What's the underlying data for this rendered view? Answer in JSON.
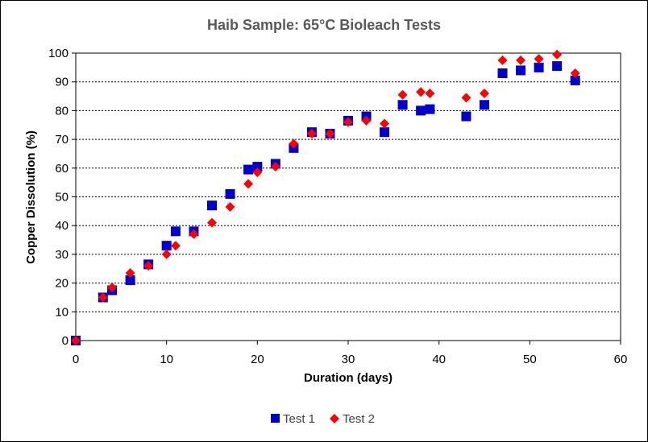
{
  "chart_data": {
    "type": "scatter",
    "title": "Haib Sample: 65°C Bioleach Tests",
    "xlabel": "Duration (days)",
    "ylabel": "Copper Dissolution (%)",
    "xlim": [
      0,
      60
    ],
    "ylim": [
      0,
      100
    ],
    "xticks": [
      0,
      10,
      20,
      30,
      40,
      50,
      60
    ],
    "yticks": [
      0,
      10,
      20,
      30,
      40,
      50,
      60,
      70,
      80,
      90,
      100
    ],
    "grid": "horizontal dotted",
    "legend_position": "bottom",
    "series": [
      {
        "name": "Test 1",
        "marker": "square",
        "color": "#0000CC",
        "points": [
          [
            0,
            0
          ],
          [
            3,
            15
          ],
          [
            4,
            17.5
          ],
          [
            6,
            21
          ],
          [
            8,
            26.5
          ],
          [
            10,
            33
          ],
          [
            11,
            38
          ],
          [
            13,
            38
          ],
          [
            15,
            47
          ],
          [
            17,
            51
          ],
          [
            19,
            59.5
          ],
          [
            20,
            60.5
          ],
          [
            22,
            61.5
          ],
          [
            24,
            67
          ],
          [
            26,
            72.5
          ],
          [
            28,
            72
          ],
          [
            30,
            76.5
          ],
          [
            32,
            78
          ],
          [
            34,
            72.5
          ],
          [
            36,
            82
          ],
          [
            38,
            80
          ],
          [
            39,
            80.5
          ],
          [
            43,
            78
          ],
          [
            45,
            82
          ],
          [
            47,
            93
          ],
          [
            49,
            94
          ],
          [
            51,
            95
          ],
          [
            53,
            95.5
          ],
          [
            55,
            90.5
          ]
        ]
      },
      {
        "name": "Test 2",
        "marker": "diamond",
        "color": "#FF0000",
        "points": [
          [
            0,
            0
          ],
          [
            3,
            15
          ],
          [
            4,
            18.5
          ],
          [
            6,
            23.5
          ],
          [
            8,
            26
          ],
          [
            10,
            30
          ],
          [
            11,
            33
          ],
          [
            13,
            37
          ],
          [
            15,
            41
          ],
          [
            17,
            46.5
          ],
          [
            19,
            54.5
          ],
          [
            20,
            58.5
          ],
          [
            22,
            60.5
          ],
          [
            24,
            68.5
          ],
          [
            26,
            72
          ],
          [
            28,
            72
          ],
          [
            30,
            76
          ],
          [
            32,
            76.5
          ],
          [
            34,
            75.5
          ],
          [
            36,
            85.5
          ],
          [
            38,
            86.5
          ],
          [
            39,
            86
          ],
          [
            43,
            84.5
          ],
          [
            45,
            86
          ],
          [
            47,
            97.5
          ],
          [
            49,
            97.5
          ],
          [
            51,
            98
          ],
          [
            53,
            99.5
          ],
          [
            55,
            93
          ]
        ]
      }
    ]
  }
}
